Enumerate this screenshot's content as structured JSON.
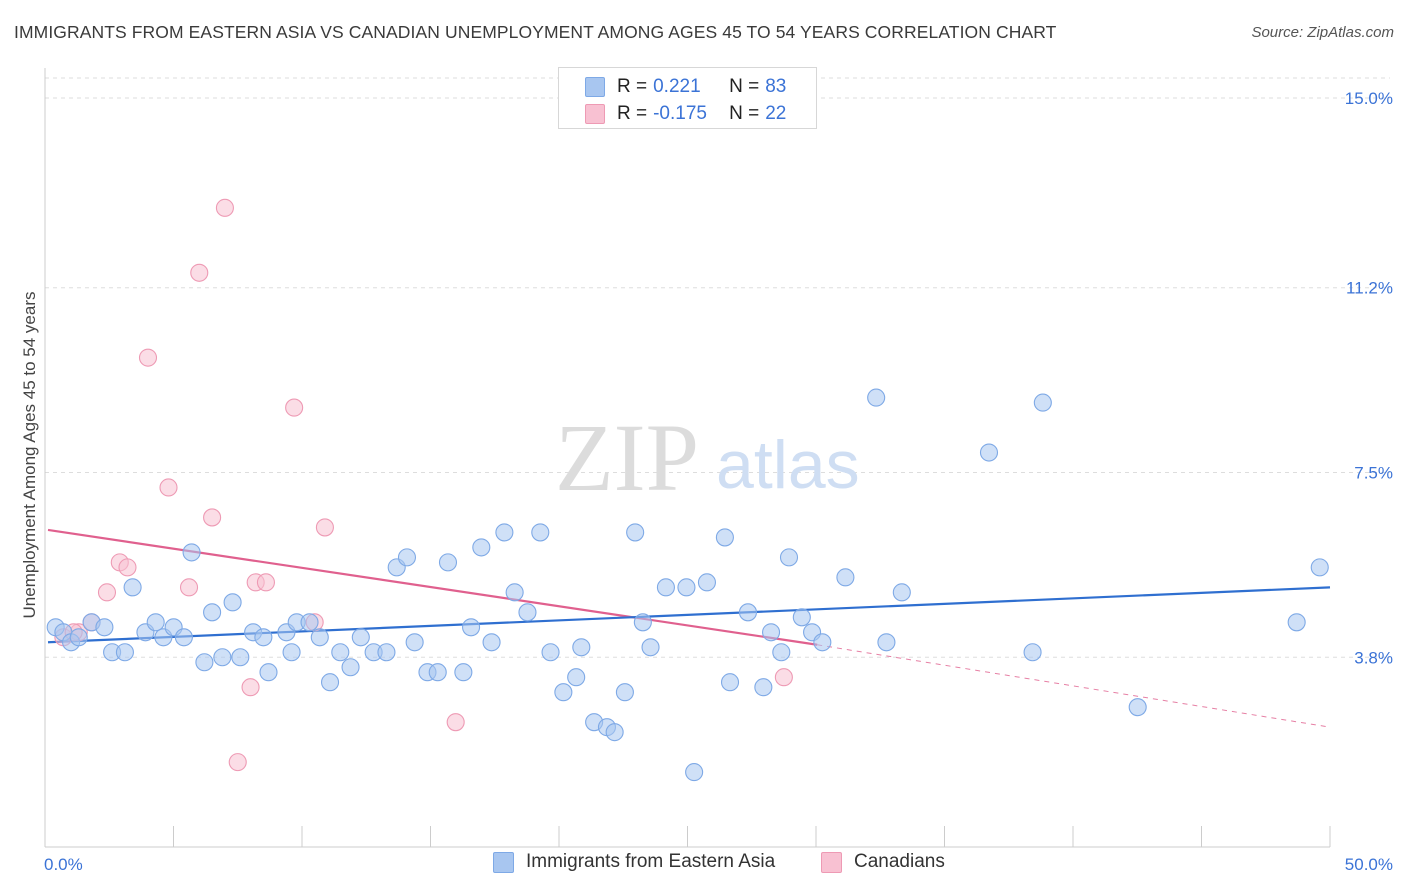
{
  "title": "IMMIGRANTS FROM EASTERN ASIA VS CANADIAN UNEMPLOYMENT AMONG AGES 45 TO 54 YEARS CORRELATION CHART",
  "source": "Source: ZipAtlas.com",
  "watermark": {
    "zip": "ZIP",
    "atlas": "atlas"
  },
  "legend": {
    "rows": [
      {
        "r_label": "R =",
        "r_value": "0.221",
        "n_label": "N =",
        "n_value": "83",
        "color": "#a8c6f0",
        "border": "#7ea9e6"
      },
      {
        "r_label": "R =",
        "r_value": "-0.175",
        "n_label": "N =",
        "n_value": "22",
        "color": "#f8c1d2",
        "border": "#ee9ab4"
      }
    ]
  },
  "chart_data": {
    "type": "scatter",
    "title": "IMMIGRANTS FROM EASTERN ASIA VS CANADIAN UNEMPLOYMENT AMONG AGES 45 TO 54 YEARS CORRELATION CHART",
    "xlabel": "",
    "ylabel": "Unemployment Among Ages 45 to 54 years",
    "xlim": [
      0,
      50
    ],
    "ylim": [
      0,
      15.0
    ],
    "x_tick_labels": [
      "0.0%",
      "50.0%"
    ],
    "y_ticks": [
      3.8,
      7.5,
      11.2,
      15.0
    ],
    "y_tick_labels": [
      "3.8%",
      "7.5%",
      "11.2%",
      "15.0%"
    ],
    "grid": "horizontal dashed",
    "legend_position": "top-center",
    "series": [
      {
        "name": "Immigrants from Eastern Asia",
        "color": "#a8c6f0",
        "stroke": "#7ea9e6",
        "trend": {
          "x": [
            0,
            50
          ],
          "y": [
            4.1,
            5.2
          ],
          "color": "#2f6fd0"
        },
        "points": [
          [
            0.3,
            4.4
          ],
          [
            0.6,
            4.3
          ],
          [
            0.9,
            4.1
          ],
          [
            1.2,
            4.2
          ],
          [
            1.7,
            4.5
          ],
          [
            2.2,
            4.4
          ],
          [
            2.5,
            3.9
          ],
          [
            3.0,
            3.9
          ],
          [
            3.3,
            5.2
          ],
          [
            3.8,
            4.3
          ],
          [
            4.2,
            4.5
          ],
          [
            4.5,
            4.2
          ],
          [
            4.9,
            4.4
          ],
          [
            5.3,
            4.2
          ],
          [
            5.6,
            5.9
          ],
          [
            6.1,
            3.7
          ],
          [
            6.4,
            4.7
          ],
          [
            6.8,
            3.8
          ],
          [
            7.2,
            4.9
          ],
          [
            7.5,
            3.8
          ],
          [
            8.0,
            4.3
          ],
          [
            8.4,
            4.2
          ],
          [
            8.6,
            3.5
          ],
          [
            9.3,
            4.3
          ],
          [
            9.5,
            3.9
          ],
          [
            9.7,
            4.5
          ],
          [
            10.2,
            4.5
          ],
          [
            10.6,
            4.2
          ],
          [
            11.0,
            3.3
          ],
          [
            11.4,
            3.9
          ],
          [
            11.8,
            3.6
          ],
          [
            12.2,
            4.2
          ],
          [
            12.7,
            3.9
          ],
          [
            13.2,
            3.9
          ],
          [
            13.6,
            5.6
          ],
          [
            14.0,
            5.8
          ],
          [
            14.3,
            4.1
          ],
          [
            14.8,
            3.5
          ],
          [
            15.2,
            3.5
          ],
          [
            15.6,
            5.7
          ],
          [
            16.2,
            3.5
          ],
          [
            16.5,
            4.4
          ],
          [
            16.9,
            6.0
          ],
          [
            17.3,
            4.1
          ],
          [
            17.8,
            6.3
          ],
          [
            18.2,
            5.1
          ],
          [
            18.7,
            4.7
          ],
          [
            19.2,
            6.3
          ],
          [
            19.6,
            3.9
          ],
          [
            20.1,
            3.1
          ],
          [
            20.6,
            3.4
          ],
          [
            20.8,
            4.0
          ],
          [
            21.3,
            2.5
          ],
          [
            21.8,
            2.4
          ],
          [
            22.1,
            2.3
          ],
          [
            22.5,
            3.1
          ],
          [
            22.9,
            6.3
          ],
          [
            23.2,
            4.5
          ],
          [
            23.5,
            4.0
          ],
          [
            24.1,
            5.2
          ],
          [
            24.9,
            5.2
          ],
          [
            25.2,
            1.5
          ],
          [
            25.7,
            5.3
          ],
          [
            26.4,
            6.2
          ],
          [
            26.6,
            3.3
          ],
          [
            27.3,
            4.7
          ],
          [
            27.9,
            3.2
          ],
          [
            28.2,
            4.3
          ],
          [
            28.6,
            3.9
          ],
          [
            28.9,
            5.8
          ],
          [
            29.4,
            4.6
          ],
          [
            29.8,
            4.3
          ],
          [
            30.2,
            4.1
          ],
          [
            31.1,
            5.4
          ],
          [
            32.3,
            9.0
          ],
          [
            32.7,
            4.1
          ],
          [
            33.3,
            5.1
          ],
          [
            36.7,
            7.9
          ],
          [
            38.4,
            3.9
          ],
          [
            38.8,
            8.9
          ],
          [
            42.5,
            2.8
          ],
          [
            48.7,
            4.5
          ],
          [
            49.6,
            5.6
          ]
        ]
      },
      {
        "name": "Canadians",
        "color": "#f8c1d2",
        "stroke": "#ee9ab4",
        "trend": {
          "x": [
            0,
            30
          ],
          "y": [
            6.35,
            4.05
          ],
          "color": "#e0608e",
          "dashed_extension": {
            "x": [
              30,
              50
            ],
            "y": [
              4.05,
              2.4
            ]
          }
        },
        "points": [
          [
            0.6,
            4.2
          ],
          [
            1.2,
            4.3
          ],
          [
            1.7,
            4.5
          ],
          [
            2.3,
            5.1
          ],
          [
            2.8,
            5.7
          ],
          [
            3.1,
            5.6
          ],
          [
            3.9,
            9.8
          ],
          [
            4.7,
            7.2
          ],
          [
            5.5,
            5.2
          ],
          [
            5.9,
            11.5
          ],
          [
            6.4,
            6.6
          ],
          [
            6.9,
            12.8
          ],
          [
            7.4,
            1.7
          ],
          [
            7.9,
            3.2
          ],
          [
            8.1,
            5.3
          ],
          [
            8.5,
            5.3
          ],
          [
            9.6,
            8.8
          ],
          [
            10.4,
            4.5
          ],
          [
            10.8,
            6.4
          ],
          [
            15.9,
            2.5
          ],
          [
            28.7,
            3.4
          ],
          [
            1.0,
            4.3
          ]
        ]
      }
    ]
  }
}
